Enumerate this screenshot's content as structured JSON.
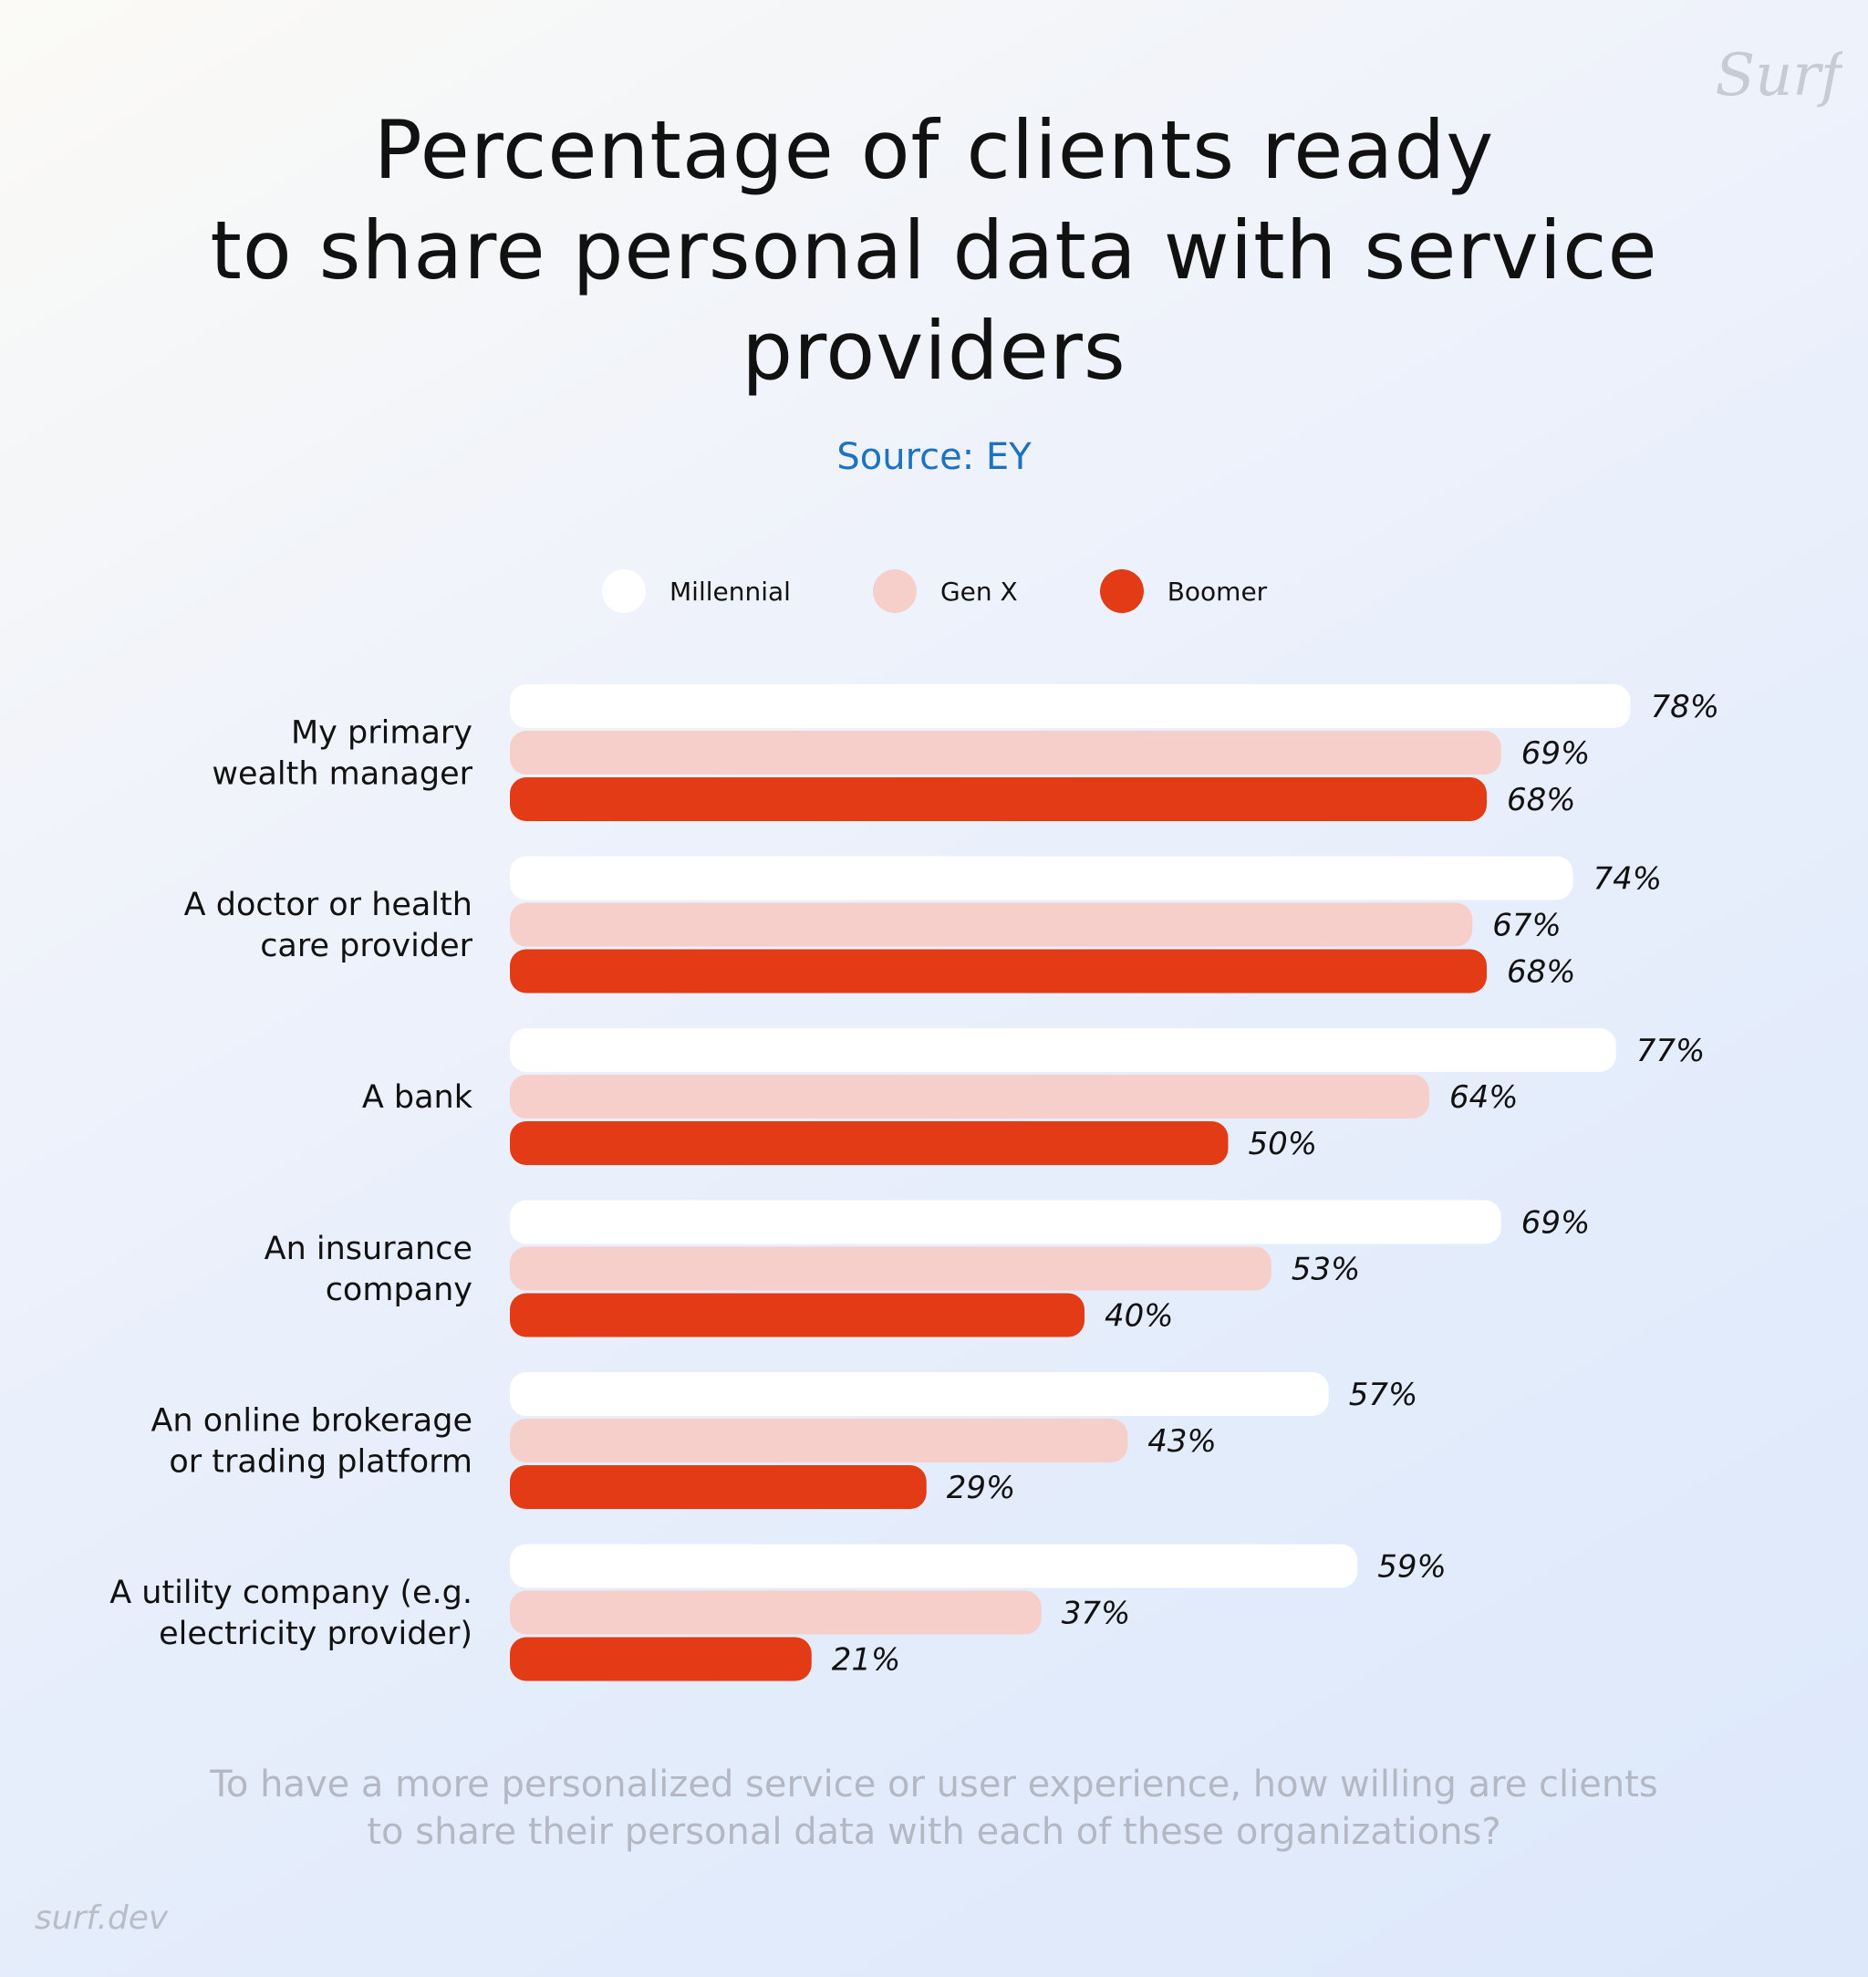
{
  "title_lines": [
    "Percentage of clients ready",
    "to share personal data with service",
    "providers"
  ],
  "source": "Source: EY",
  "logo_text": "Surf",
  "footer": "surf.dev",
  "question_lines": [
    "To have a more personalized service or user experience, how willing are clients",
    "to share their personal data with each of these organizations?"
  ],
  "colors": {
    "millennial": "#ffffff",
    "genx": "#f6cfca",
    "boomer": "#e23b16",
    "text": "#111111",
    "source": "#1e72c2",
    "muted": "#b4b8c3"
  },
  "chart_data": {
    "type": "bar",
    "orientation": "horizontal",
    "title": "Percentage of clients ready to share personal data with service providers",
    "xlabel": "",
    "ylabel": "",
    "xlim": [
      0,
      100
    ],
    "grid": false,
    "legend_position": "top-center",
    "value_suffix": "%",
    "categories": [
      [
        "My primary",
        "wealth manager"
      ],
      [
        "A doctor or health",
        "care provider"
      ],
      [
        "A bank"
      ],
      [
        "An insurance",
        "company"
      ],
      [
        "An online brokerage",
        "or trading platform"
      ],
      [
        "A utility company (e.g.",
        "electricity provider)"
      ]
    ],
    "series": [
      {
        "name": "Millennial",
        "color": "#ffffff",
        "values": [
          78,
          74,
          77,
          69,
          57,
          59
        ]
      },
      {
        "name": "Gen X",
        "color": "#f6cfca",
        "values": [
          69,
          67,
          64,
          53,
          43,
          37
        ]
      },
      {
        "name": "Boomer",
        "color": "#e23b16",
        "values": [
          68,
          68,
          50,
          40,
          29,
          21
        ]
      }
    ]
  }
}
